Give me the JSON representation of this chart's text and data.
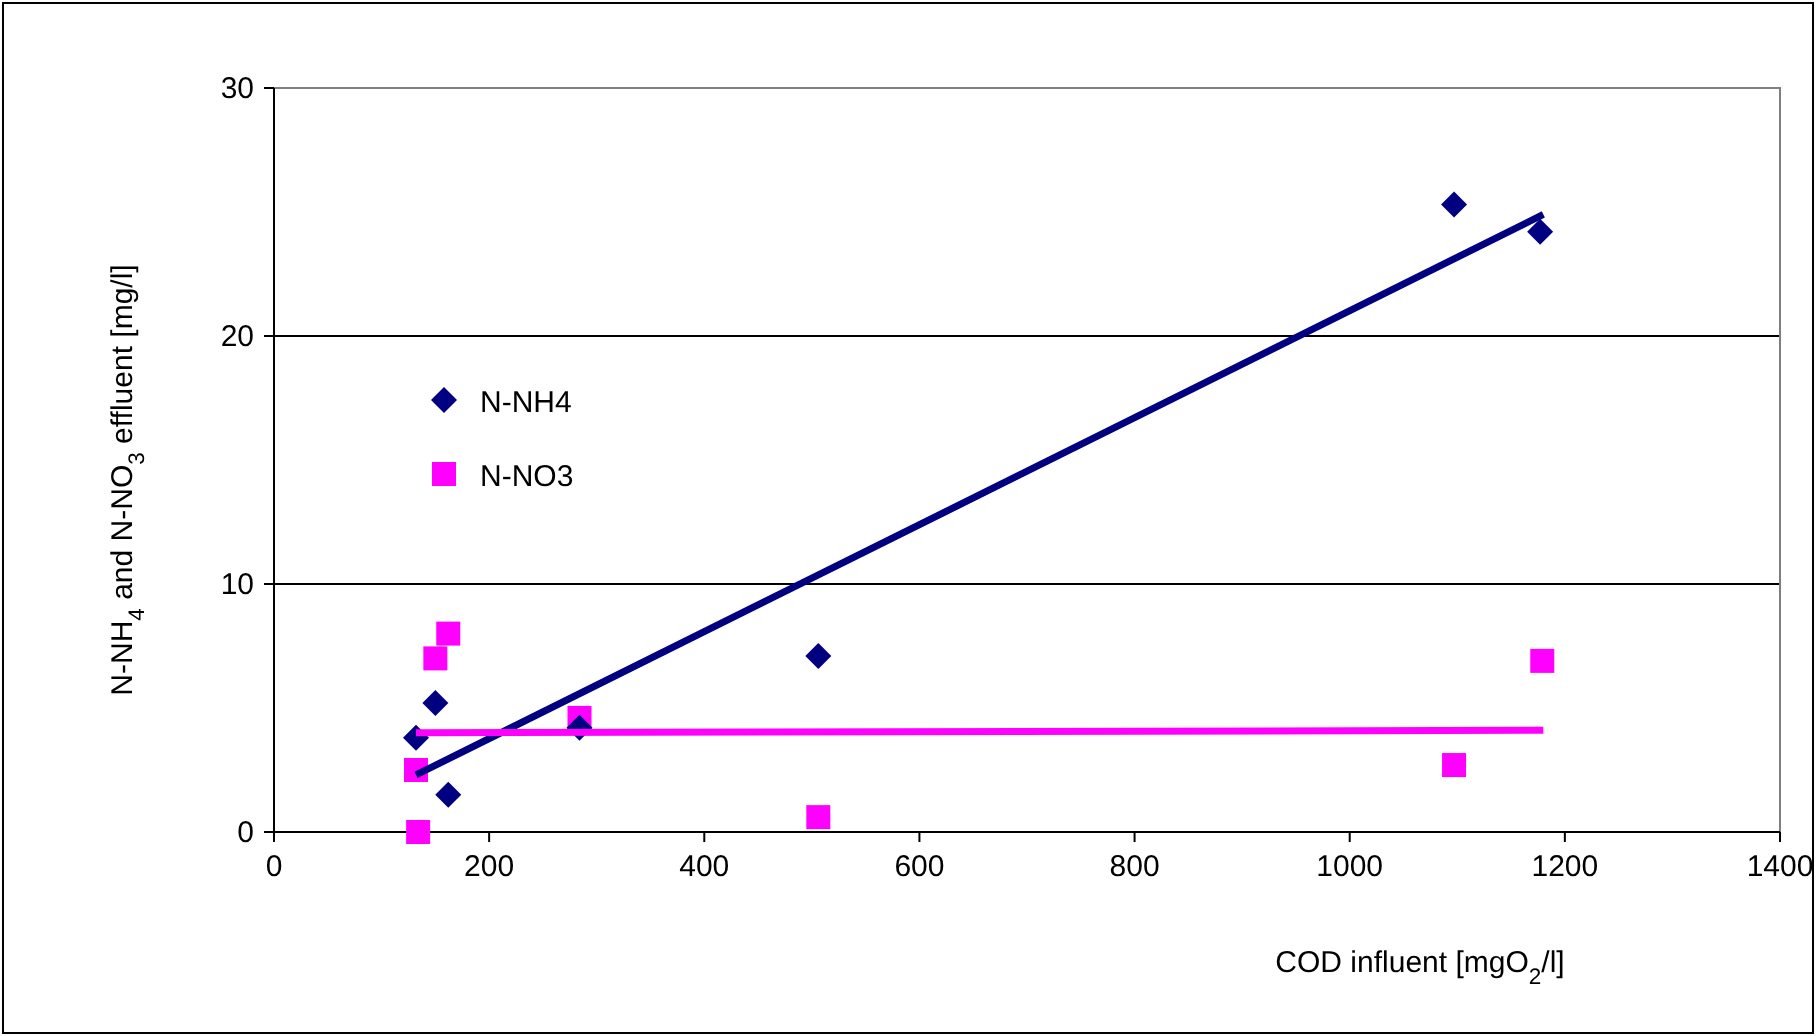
{
  "chart_data": {
    "type": "scatter",
    "xlabel": "COD influent [mgO$_{2}$/l]",
    "ylabel": "N-NH$_{4}$ and N-NO$_{3}$  effluent [mg/l]",
    "xlim": [
      0,
      1400
    ],
    "xticks": [
      0,
      200,
      400,
      600,
      800,
      1000,
      1200,
      1400
    ],
    "ylim": [
      0,
      30
    ],
    "yticks": [
      0,
      10,
      20,
      30
    ],
    "grid": "y",
    "legend": "left",
    "series": [
      {
        "name": "N-NH4",
        "color": "#000080",
        "marker": "diamond",
        "x": [
          132,
          150,
          162,
          284,
          506,
          1097,
          1177
        ],
        "values": [
          3.8,
          5.2,
          1.5,
          4.2,
          7.1,
          25.3,
          24.2
        ]
      },
      {
        "name": "N-NO3",
        "color": "#ff00ff",
        "marker": "square",
        "x": [
          132,
          134,
          150,
          162,
          284,
          506,
          1097,
          1179
        ],
        "values": [
          2.5,
          0,
          7.0,
          8.0,
          4.6,
          0.6,
          2.7,
          6.9
        ]
      },
      {
        "type": "line",
        "color": "#000080",
        "x": [
          132,
          1180
        ],
        "values": [
          2.3,
          24.9
        ]
      },
      {
        "type": "line",
        "color": "#ff00ff",
        "x": [
          132,
          1180
        ],
        "values": [
          4.0,
          4.1
        ]
      }
    ]
  }
}
